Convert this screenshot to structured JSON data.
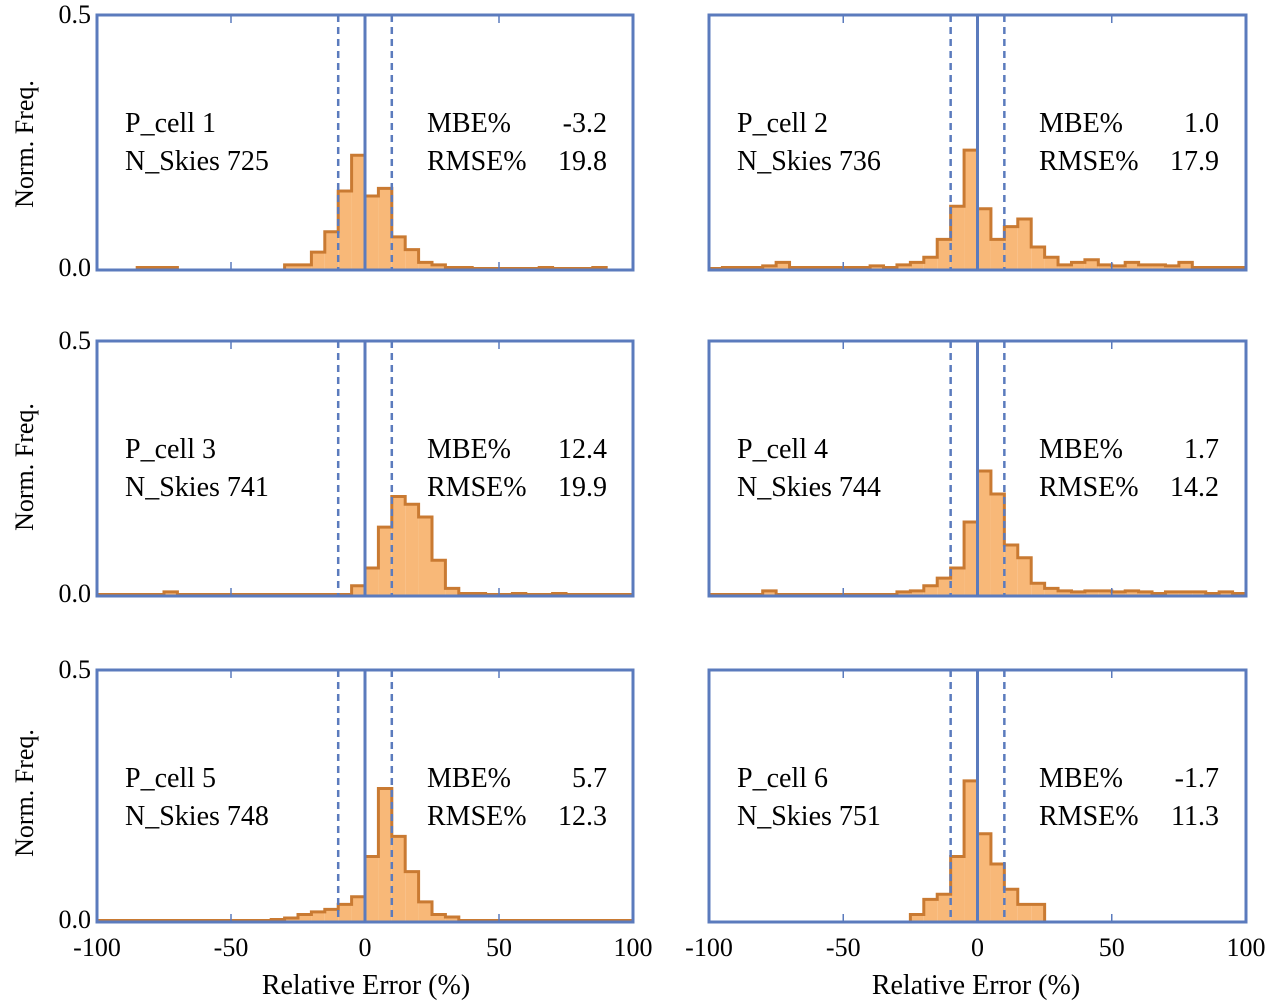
{
  "colors": {
    "frame": "#5b7bbd",
    "fill": "#f8b878",
    "edge": "#c97a32",
    "text": "#000000"
  },
  "shared": {
    "ylabel": "Norm. Freq.",
    "xlabel": "Relative Error (%)",
    "x_ticks": [
      -100,
      -50,
      0,
      50,
      100
    ],
    "x_tick_labels": [
      "-100",
      "-50",
      "0",
      "50",
      "100"
    ],
    "y_tick_labels": [
      "0.0",
      "0.5"
    ],
    "mbe_label": "MBE%",
    "rmse_label": "RMSE%"
  },
  "chart_data": [
    {
      "type": "bar",
      "cell_label": "P_cell 1",
      "nskies_label": "N_Skies 725",
      "mbe": "-3.2",
      "rmse": "19.8",
      "xlim": [
        -100,
        100
      ],
      "ylim": [
        0,
        0.5
      ],
      "reference_lines": {
        "solid": 0,
        "dashed": [
          -10,
          10
        ]
      },
      "bin_width": 5,
      "bins_start": [
        -85,
        -80,
        -75,
        -70,
        -65,
        -60,
        -55,
        -50,
        -45,
        -40,
        -35,
        -30,
        -25,
        -20,
        -15,
        -10,
        -5,
        0,
        5,
        10,
        15,
        20,
        25,
        30,
        35,
        40,
        45,
        50,
        55,
        60,
        65,
        70,
        75,
        80,
        85
      ],
      "values": [
        0.005,
        0.005,
        0.005,
        0,
        0,
        0,
        0,
        0,
        0,
        0,
        0,
        0.01,
        0.01,
        0.035,
        0.075,
        0.155,
        0.225,
        0.145,
        0.16,
        0.065,
        0.04,
        0.015,
        0.01,
        0.005,
        0.005,
        0.003,
        0.003,
        0.003,
        0.003,
        0.003,
        0.005,
        0.003,
        0.003,
        0.003,
        0.005
      ]
    },
    {
      "type": "bar",
      "cell_label": "P_cell 2",
      "nskies_label": "N_Skies 736",
      "mbe": "1.0",
      "rmse": "17.9",
      "xlim": [
        -100,
        100
      ],
      "ylim": [
        0,
        0.5
      ],
      "reference_lines": {
        "solid": 0,
        "dashed": [
          -10,
          10
        ]
      },
      "bin_width": 5,
      "bins_start": [
        -100,
        -95,
        -90,
        -85,
        -80,
        -75,
        -70,
        -65,
        -60,
        -55,
        -50,
        -45,
        -40,
        -35,
        -30,
        -25,
        -20,
        -15,
        -10,
        -5,
        0,
        5,
        10,
        15,
        20,
        25,
        30,
        35,
        40,
        45,
        50,
        55,
        60,
        65,
        70,
        75,
        80,
        85,
        90,
        95
      ],
      "values": [
        0.003,
        0.005,
        0.005,
        0.005,
        0.008,
        0.015,
        0.005,
        0.005,
        0.005,
        0.005,
        0.005,
        0.005,
        0.008,
        0.005,
        0.01,
        0.015,
        0.025,
        0.06,
        0.125,
        0.235,
        0.12,
        0.06,
        0.085,
        0.1,
        0.045,
        0.025,
        0.01,
        0.015,
        0.02,
        0.01,
        0.008,
        0.015,
        0.01,
        0.01,
        0.008,
        0.015,
        0.005,
        0.005,
        0.005,
        0.005
      ]
    },
    {
      "type": "bar",
      "cell_label": "P_cell 3",
      "nskies_label": "N_Skies 741",
      "mbe": "12.4",
      "rmse": "19.9",
      "xlim": [
        -100,
        100
      ],
      "ylim": [
        0,
        0.5
      ],
      "reference_lines": {
        "solid": 0,
        "dashed": [
          -10,
          10
        ]
      },
      "bin_width": 5,
      "bins_start": [
        -100,
        -95,
        -90,
        -85,
        -80,
        -75,
        -70,
        -65,
        -60,
        -55,
        -50,
        -45,
        -40,
        -35,
        -30,
        -25,
        -20,
        -15,
        -10,
        -5,
        0,
        5,
        10,
        15,
        20,
        25,
        30,
        35,
        40,
        45,
        50,
        55,
        60,
        65,
        70,
        75,
        80,
        85,
        90,
        95
      ],
      "values": [
        0.003,
        0.003,
        0.003,
        0.003,
        0.003,
        0.008,
        0.003,
        0.003,
        0.003,
        0.003,
        0.003,
        0.003,
        0.003,
        0.003,
        0.003,
        0.003,
        0.003,
        0.003,
        0.003,
        0.02,
        0.055,
        0.135,
        0.195,
        0.18,
        0.155,
        0.07,
        0.015,
        0.005,
        0.005,
        0.003,
        0.003,
        0.005,
        0.003,
        0.003,
        0.005,
        0.003,
        0.003,
        0.003,
        0.003,
        0.003
      ]
    },
    {
      "type": "bar",
      "cell_label": "P_cell 4",
      "nskies_label": "N_Skies 744",
      "mbe": "1.7",
      "rmse": "14.2",
      "xlim": [
        -100,
        100
      ],
      "ylim": [
        0,
        0.5
      ],
      "reference_lines": {
        "solid": 0,
        "dashed": [
          -10,
          10
        ]
      },
      "bin_width": 5,
      "bins_start": [
        -100,
        -95,
        -90,
        -85,
        -80,
        -75,
        -70,
        -65,
        -60,
        -55,
        -50,
        -45,
        -40,
        -35,
        -30,
        -25,
        -20,
        -15,
        -10,
        -5,
        0,
        5,
        10,
        15,
        20,
        25,
        30,
        35,
        40,
        45,
        50,
        55,
        60,
        65,
        70,
        75,
        80,
        85,
        90,
        95
      ],
      "values": [
        0.003,
        0.003,
        0.003,
        0.003,
        0.01,
        0.003,
        0.003,
        0.003,
        0.003,
        0.003,
        0.003,
        0.003,
        0.003,
        0.003,
        0.008,
        0.01,
        0.02,
        0.035,
        0.055,
        0.145,
        0.245,
        0.2,
        0.1,
        0.075,
        0.025,
        0.015,
        0.01,
        0.008,
        0.01,
        0.01,
        0.008,
        0.01,
        0.008,
        0.005,
        0.008,
        0.008,
        0.008,
        0.005,
        0.008,
        0.005
      ]
    },
    {
      "type": "bar",
      "cell_label": "P_cell 5",
      "nskies_label": "N_Skies 748",
      "mbe": "5.7",
      "rmse": "12.3",
      "xlim": [
        -100,
        100
      ],
      "ylim": [
        0,
        0.5
      ],
      "reference_lines": {
        "solid": 0,
        "dashed": [
          -10,
          10
        ]
      },
      "bin_width": 5,
      "bins_start": [
        -100,
        -95,
        -90,
        -85,
        -80,
        -75,
        -70,
        -65,
        -60,
        -55,
        -50,
        -45,
        -40,
        -35,
        -30,
        -25,
        -20,
        -15,
        -10,
        -5,
        0,
        5,
        10,
        15,
        20,
        25,
        30,
        35,
        40,
        45,
        50,
        55,
        60,
        65,
        70,
        75,
        80,
        85,
        90,
        95
      ],
      "values": [
        0.003,
        0.003,
        0.003,
        0.003,
        0.003,
        0.003,
        0.003,
        0.003,
        0.003,
        0.003,
        0.003,
        0.003,
        0.003,
        0.005,
        0.008,
        0.015,
        0.02,
        0.025,
        0.035,
        0.05,
        0.13,
        0.265,
        0.17,
        0.1,
        0.04,
        0.015,
        0.01,
        0.003,
        0.003,
        0.003,
        0.003,
        0.003,
        0.003,
        0.003,
        0.003,
        0.003,
        0.003,
        0.003,
        0.003,
        0.003
      ]
    },
    {
      "type": "bar",
      "cell_label": "P_cell 6",
      "nskies_label": "N_Skies 751",
      "mbe": "-1.7",
      "rmse": "11.3",
      "xlim": [
        -100,
        100
      ],
      "ylim": [
        0,
        0.5
      ],
      "reference_lines": {
        "solid": 0,
        "dashed": [
          -10,
          10
        ]
      },
      "bin_width": 5,
      "bins_start": [
        -25,
        -20,
        -15,
        -10,
        -5,
        0,
        5,
        10,
        15,
        20
      ],
      "values": [
        0.015,
        0.045,
        0.055,
        0.13,
        0.28,
        0.175,
        0.115,
        0.065,
        0.035,
        0.035
      ]
    }
  ]
}
